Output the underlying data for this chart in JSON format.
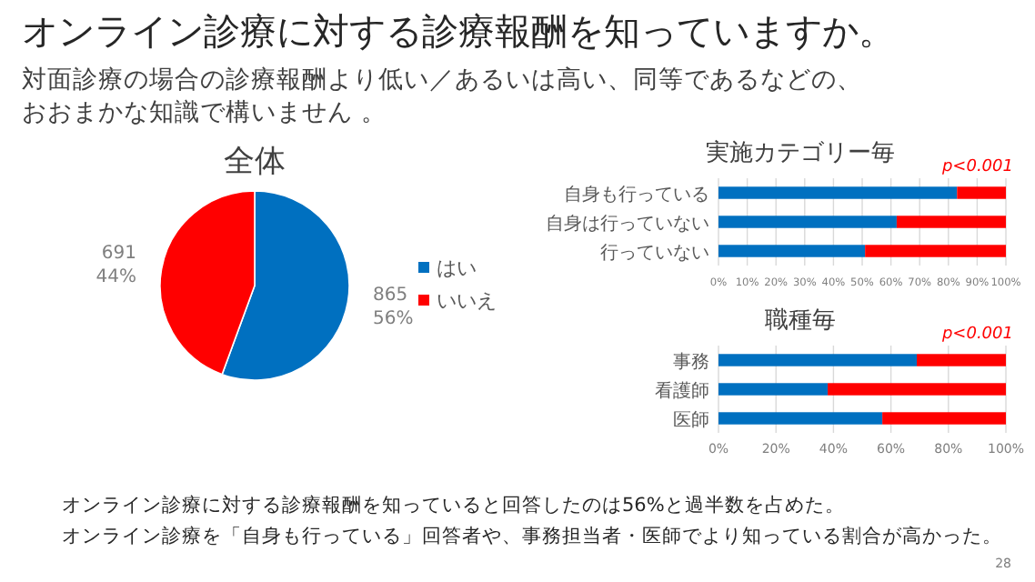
{
  "chart_data": [
    {
      "type": "pie",
      "title": "全体",
      "annotations": [
        "オンライン診療に対する診療報酬を知っていますか。",
        "対面診療の場合の診療報酬より低い／あるいは高い、同等であるなどの、",
        "おおまかな知識で構いません 。",
        "オンライン診療に対する診療報酬を知っていると回答したのは56%と過半数を占めた。",
        "オンライン診療を「自身も行っている」回答者や、事務担当者・医師でより知っている割合が高かった。",
        "28"
      ],
      "categories": [
        "はい",
        "いいえ"
      ],
      "values": [
        865,
        691
      ],
      "colors": [
        "#0070c0",
        "#ff0000"
      ],
      "value_labels": [
        "865\n56%",
        "691\n44%"
      ],
      "legend": "right"
    },
    {
      "type": "bar",
      "orientation": "horizontal",
      "stacked": true,
      "title": "実施カテゴリー毎",
      "annotations": [
        "p<0.001"
      ],
      "categories": [
        "自身も行っている",
        "自身は行っていない",
        "行っていない"
      ],
      "series": [
        {
          "color": "#0070c0",
          "values": [
            83,
            62,
            51
          ]
        },
        {
          "color": "#ff0000",
          "values": [
            17,
            38,
            49
          ]
        }
      ],
      "xlim": [
        0,
        100
      ],
      "xticks": [
        {
          "value": 0,
          "label": "0%"
        },
        {
          "value": 10,
          "label": "10%"
        },
        {
          "value": 20,
          "label": "20%"
        },
        {
          "value": 30,
          "label": "30%"
        },
        {
          "value": 40,
          "label": "40%"
        },
        {
          "value": 50,
          "label": "50%"
        },
        {
          "value": 60,
          "label": "60%"
        },
        {
          "value": 70,
          "label": "70%"
        },
        {
          "value": 80,
          "label": "80%"
        },
        {
          "value": 90,
          "label": "90%"
        },
        {
          "value": 100,
          "label": "100%"
        }
      ],
      "grid": "x"
    },
    {
      "type": "bar",
      "orientation": "horizontal",
      "stacked": true,
      "title": "職種毎",
      "annotations": [
        "p<0.001"
      ],
      "categories": [
        "事務",
        "看護師",
        "医師"
      ],
      "series": [
        {
          "color": "#0070c0",
          "values": [
            69,
            38,
            57
          ]
        },
        {
          "color": "#ff0000",
          "values": [
            31,
            62,
            43
          ]
        }
      ],
      "xlim": [
        0,
        100
      ],
      "xticks": [
        {
          "value": 0,
          "label": "0%"
        },
        {
          "value": 20,
          "label": "20%"
        },
        {
          "value": 40,
          "label": "40%"
        },
        {
          "value": 60,
          "label": "60%"
        },
        {
          "value": 80,
          "label": "80%"
        },
        {
          "value": 100,
          "label": "100%"
        }
      ],
      "grid": "x"
    }
  ]
}
